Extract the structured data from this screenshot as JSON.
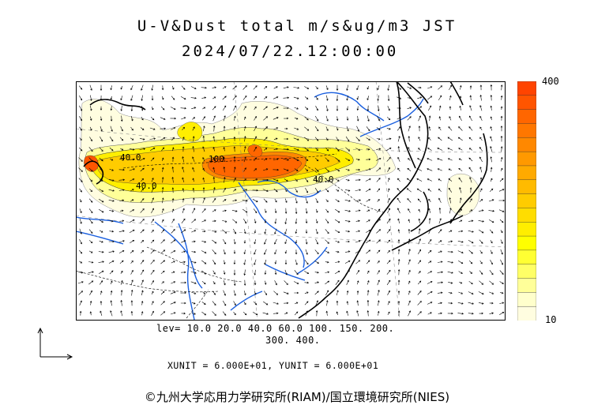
{
  "title_line1": "U-V&Dust total m/s&ug/m3 JST",
  "title_line2": "2024/07/22.12:00:00",
  "chart_data": {
    "type": "heatmap",
    "variable": "Dust total",
    "units": "ug/m3",
    "wind": "U-V",
    "wind_units": "m/s",
    "valid_time": "2024/07/22 12:00:00 JST",
    "colorbar_min": 10,
    "colorbar_max": 400,
    "colorbar_colors": [
      "#fffde0",
      "#ffffcc",
      "#ffff99",
      "#ffff66",
      "#ffff33",
      "#ffff00",
      "#ffee00",
      "#ffdd00",
      "#ffcc00",
      "#ffbb00",
      "#ffaa00",
      "#ff9900",
      "#ff8800",
      "#ff7700",
      "#ff6600",
      "#ff5500",
      "#ff4400"
    ],
    "contour_levels": [
      10,
      20,
      40,
      60,
      100,
      150,
      200,
      300,
      400
    ],
    "contour_labels": [
      "40.0",
      "100",
      "40.0",
      "40.0"
    ],
    "xunit": "6.000E+01",
    "yunit": "6.000E+01"
  },
  "colorbar": {
    "max_label": "400",
    "min_label": "10"
  },
  "lev_line1": "lev= 10.0 20.0 40.0 60.0 100. 150. 200.",
  "lev_line2": "300. 400.",
  "unit_line": "XUNIT = 6.000E+01, YUNIT = 6.000E+01",
  "copyright": "©九州大学応用力学研究所(RIAM)/国立環境研究所(NIES)"
}
